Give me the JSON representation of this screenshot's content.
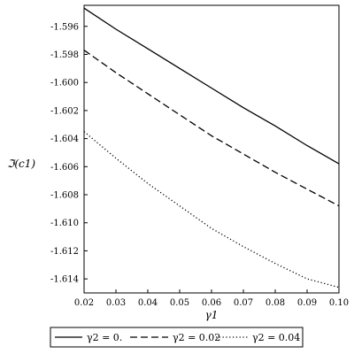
{
  "chart_data": {
    "type": "line",
    "xlabel": "γ1",
    "ylabel": "ℑ(c1)",
    "xlim": [
      0.02,
      0.1
    ],
    "ylim": [
      -1.615,
      -1.5945
    ],
    "xticks": [
      0.02,
      0.03,
      0.04,
      0.05,
      0.06,
      0.07,
      0.08,
      0.09,
      0.1
    ],
    "xtick_labels": [
      "0.02",
      "0.03",
      "0.04",
      "0.05",
      "0.06",
      "0.07",
      "0.08",
      "0.09",
      "0.10"
    ],
    "yticks": [
      -1.596,
      -1.598,
      -1.6,
      -1.602,
      -1.604,
      -1.606,
      -1.608,
      -1.61,
      -1.612,
      -1.614
    ],
    "ytick_labels": [
      "-1.596",
      "-1.598",
      "-1.600",
      "-1.602",
      "-1.604",
      "-1.606",
      "-1.608",
      "-1.610",
      "-1.612",
      "-1.614"
    ],
    "grid": false,
    "legend_position": "bottom",
    "series": [
      {
        "name": "γ2 = 0.",
        "style": "solid",
        "color": "#000000",
        "x": [
          0.02,
          0.03,
          0.04,
          0.05,
          0.06,
          0.07,
          0.08,
          0.09,
          0.1
        ],
        "y": [
          -1.5947,
          -1.5962,
          -1.5976,
          -1.599,
          -1.6004,
          -1.6018,
          -1.6031,
          -1.6045,
          -1.6058
        ]
      },
      {
        "name": "γ2 = 0.02",
        "style": "dashed",
        "color": "#000000",
        "x": [
          0.02,
          0.03,
          0.04,
          0.05,
          0.06,
          0.07,
          0.08,
          0.09,
          0.1
        ],
        "y": [
          -1.5977,
          -1.5993,
          -1.6008,
          -1.6023,
          -1.6038,
          -1.6051,
          -1.6064,
          -1.6076,
          -1.6088
        ]
      },
      {
        "name": "γ2 = 0.04",
        "style": "dotted",
        "color": "#000000",
        "x": [
          0.02,
          0.03,
          0.04,
          0.05,
          0.06,
          0.07,
          0.08,
          0.09,
          0.1
        ],
        "y": [
          -1.6035,
          -1.6054,
          -1.6072,
          -1.6088,
          -1.6104,
          -1.6117,
          -1.6129,
          -1.614,
          -1.6146
        ]
      }
    ]
  }
}
